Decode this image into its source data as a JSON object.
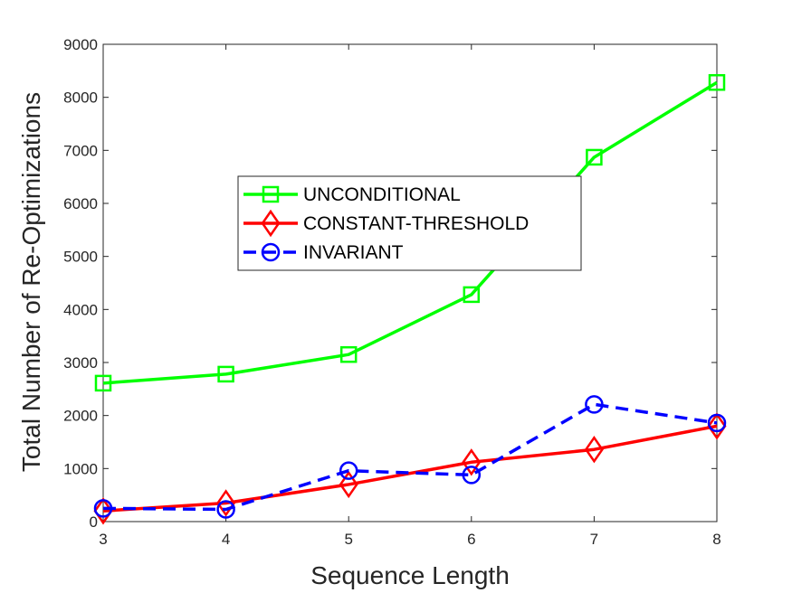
{
  "chart_data": {
    "type": "line",
    "xlabel": "Sequence Length",
    "ylabel": "Total Number of Re-Optimizations",
    "x": [
      3,
      4,
      5,
      6,
      7,
      8
    ],
    "xlim": [
      3,
      8
    ],
    "ylim": [
      0,
      9000
    ],
    "xticks": [
      "3",
      "4",
      "5",
      "6",
      "7",
      "8"
    ],
    "yticks": [
      "0",
      "1000",
      "2000",
      "3000",
      "4000",
      "5000",
      "6000",
      "7000",
      "8000",
      "9000"
    ],
    "grid": false,
    "legend_position": "center",
    "series": [
      {
        "name": "UNCONDITIONAL",
        "values": [
          2610,
          2780,
          3150,
          4280,
          6870,
          8280
        ],
        "color": "#00ff00",
        "marker": "square",
        "line_style": "solid"
      },
      {
        "name": "CONSTANT-THRESHOLD",
        "values": [
          200,
          350,
          700,
          1120,
          1360,
          1800
        ],
        "color": "#ff0000",
        "marker": "diamond",
        "line_style": "solid"
      },
      {
        "name": "INVARIANT",
        "values": [
          250,
          230,
          960,
          880,
          2210,
          1860
        ],
        "color": "#0000ff",
        "marker": "circle",
        "line_style": "dashed"
      }
    ]
  }
}
